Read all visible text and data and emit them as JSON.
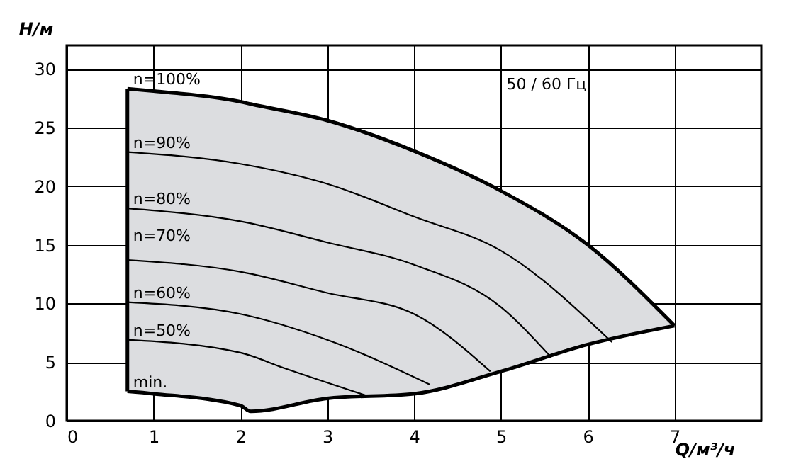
{
  "chart_data": {
    "type": "line",
    "xlabel": "Q/м³/ч",
    "ylabel": "H/м",
    "annotations": [
      "50 / 60 Гц"
    ],
    "xlim": [
      0,
      8
    ],
    "xticks": [
      0,
      1,
      2,
      3,
      4,
      5,
      6,
      7
    ],
    "ylim": [
      0,
      32
    ],
    "yticks": [
      0,
      5,
      10,
      15,
      20,
      25,
      30
    ],
    "grid": true,
    "series": [
      {
        "type": "line",
        "color": "#000000",
        "x": [
          0.7,
          0.7
        ],
        "values": [
          2.5,
          28.3
        ]
      },
      {
        "name": "n=100%",
        "color": "#000000",
        "x": [
          0.7,
          1,
          2,
          2.12,
          3,
          4,
          5,
          6,
          7
        ],
        "values": [
          28.3,
          28.1,
          27.2,
          27.0,
          25.6,
          23.0,
          19.6,
          15.0,
          8.1
        ],
        "lower": [
          2.5,
          2.3,
          1.3,
          0.8,
          1.9,
          2.3,
          4.2,
          6.5,
          8.1
        ],
        "upper": [
          28.3,
          28.1,
          27.2,
          27.0,
          25.6,
          23.0,
          19.6,
          15.0,
          8.1
        ]
      },
      {
        "name": "n=90%",
        "color": "#000000",
        "x": [
          0.7,
          2,
          3,
          4,
          5,
          6.28
        ],
        "values": [
          22.9,
          21.9,
          20.2,
          17.4,
          14.5,
          6.7
        ]
      },
      {
        "name": "n=80%",
        "color": "#000000",
        "x": [
          0.7,
          2,
          3,
          4,
          5,
          5.58
        ],
        "values": [
          18.1,
          17.0,
          15.2,
          13.3,
          9.7,
          5.4
        ]
      },
      {
        "name": "n=70%",
        "color": "#000000",
        "x": [
          0.7,
          2,
          3,
          4,
          4.88
        ],
        "values": [
          13.7,
          12.7,
          10.9,
          9.1,
          4.2
        ]
      },
      {
        "name": "n=60%",
        "color": "#000000",
        "x": [
          0.7,
          2,
          3,
          4.18
        ],
        "values": [
          10.1,
          9.1,
          6.9,
          3.1
        ]
      },
      {
        "name": "n=50%",
        "color": "#000000",
        "x": [
          0.7,
          2,
          2.5,
          3.47
        ],
        "values": [
          6.9,
          5.8,
          4.5,
          2.1
        ]
      },
      {
        "name": "min.",
        "color": "#000000",
        "x": [
          0.7,
          1,
          2,
          2.12,
          3,
          4,
          5,
          6,
          7
        ],
        "values": [
          2.5,
          2.3,
          1.3,
          0.8,
          1.9,
          2.3,
          4.2,
          6.5,
          8.1
        ]
      }
    ]
  }
}
